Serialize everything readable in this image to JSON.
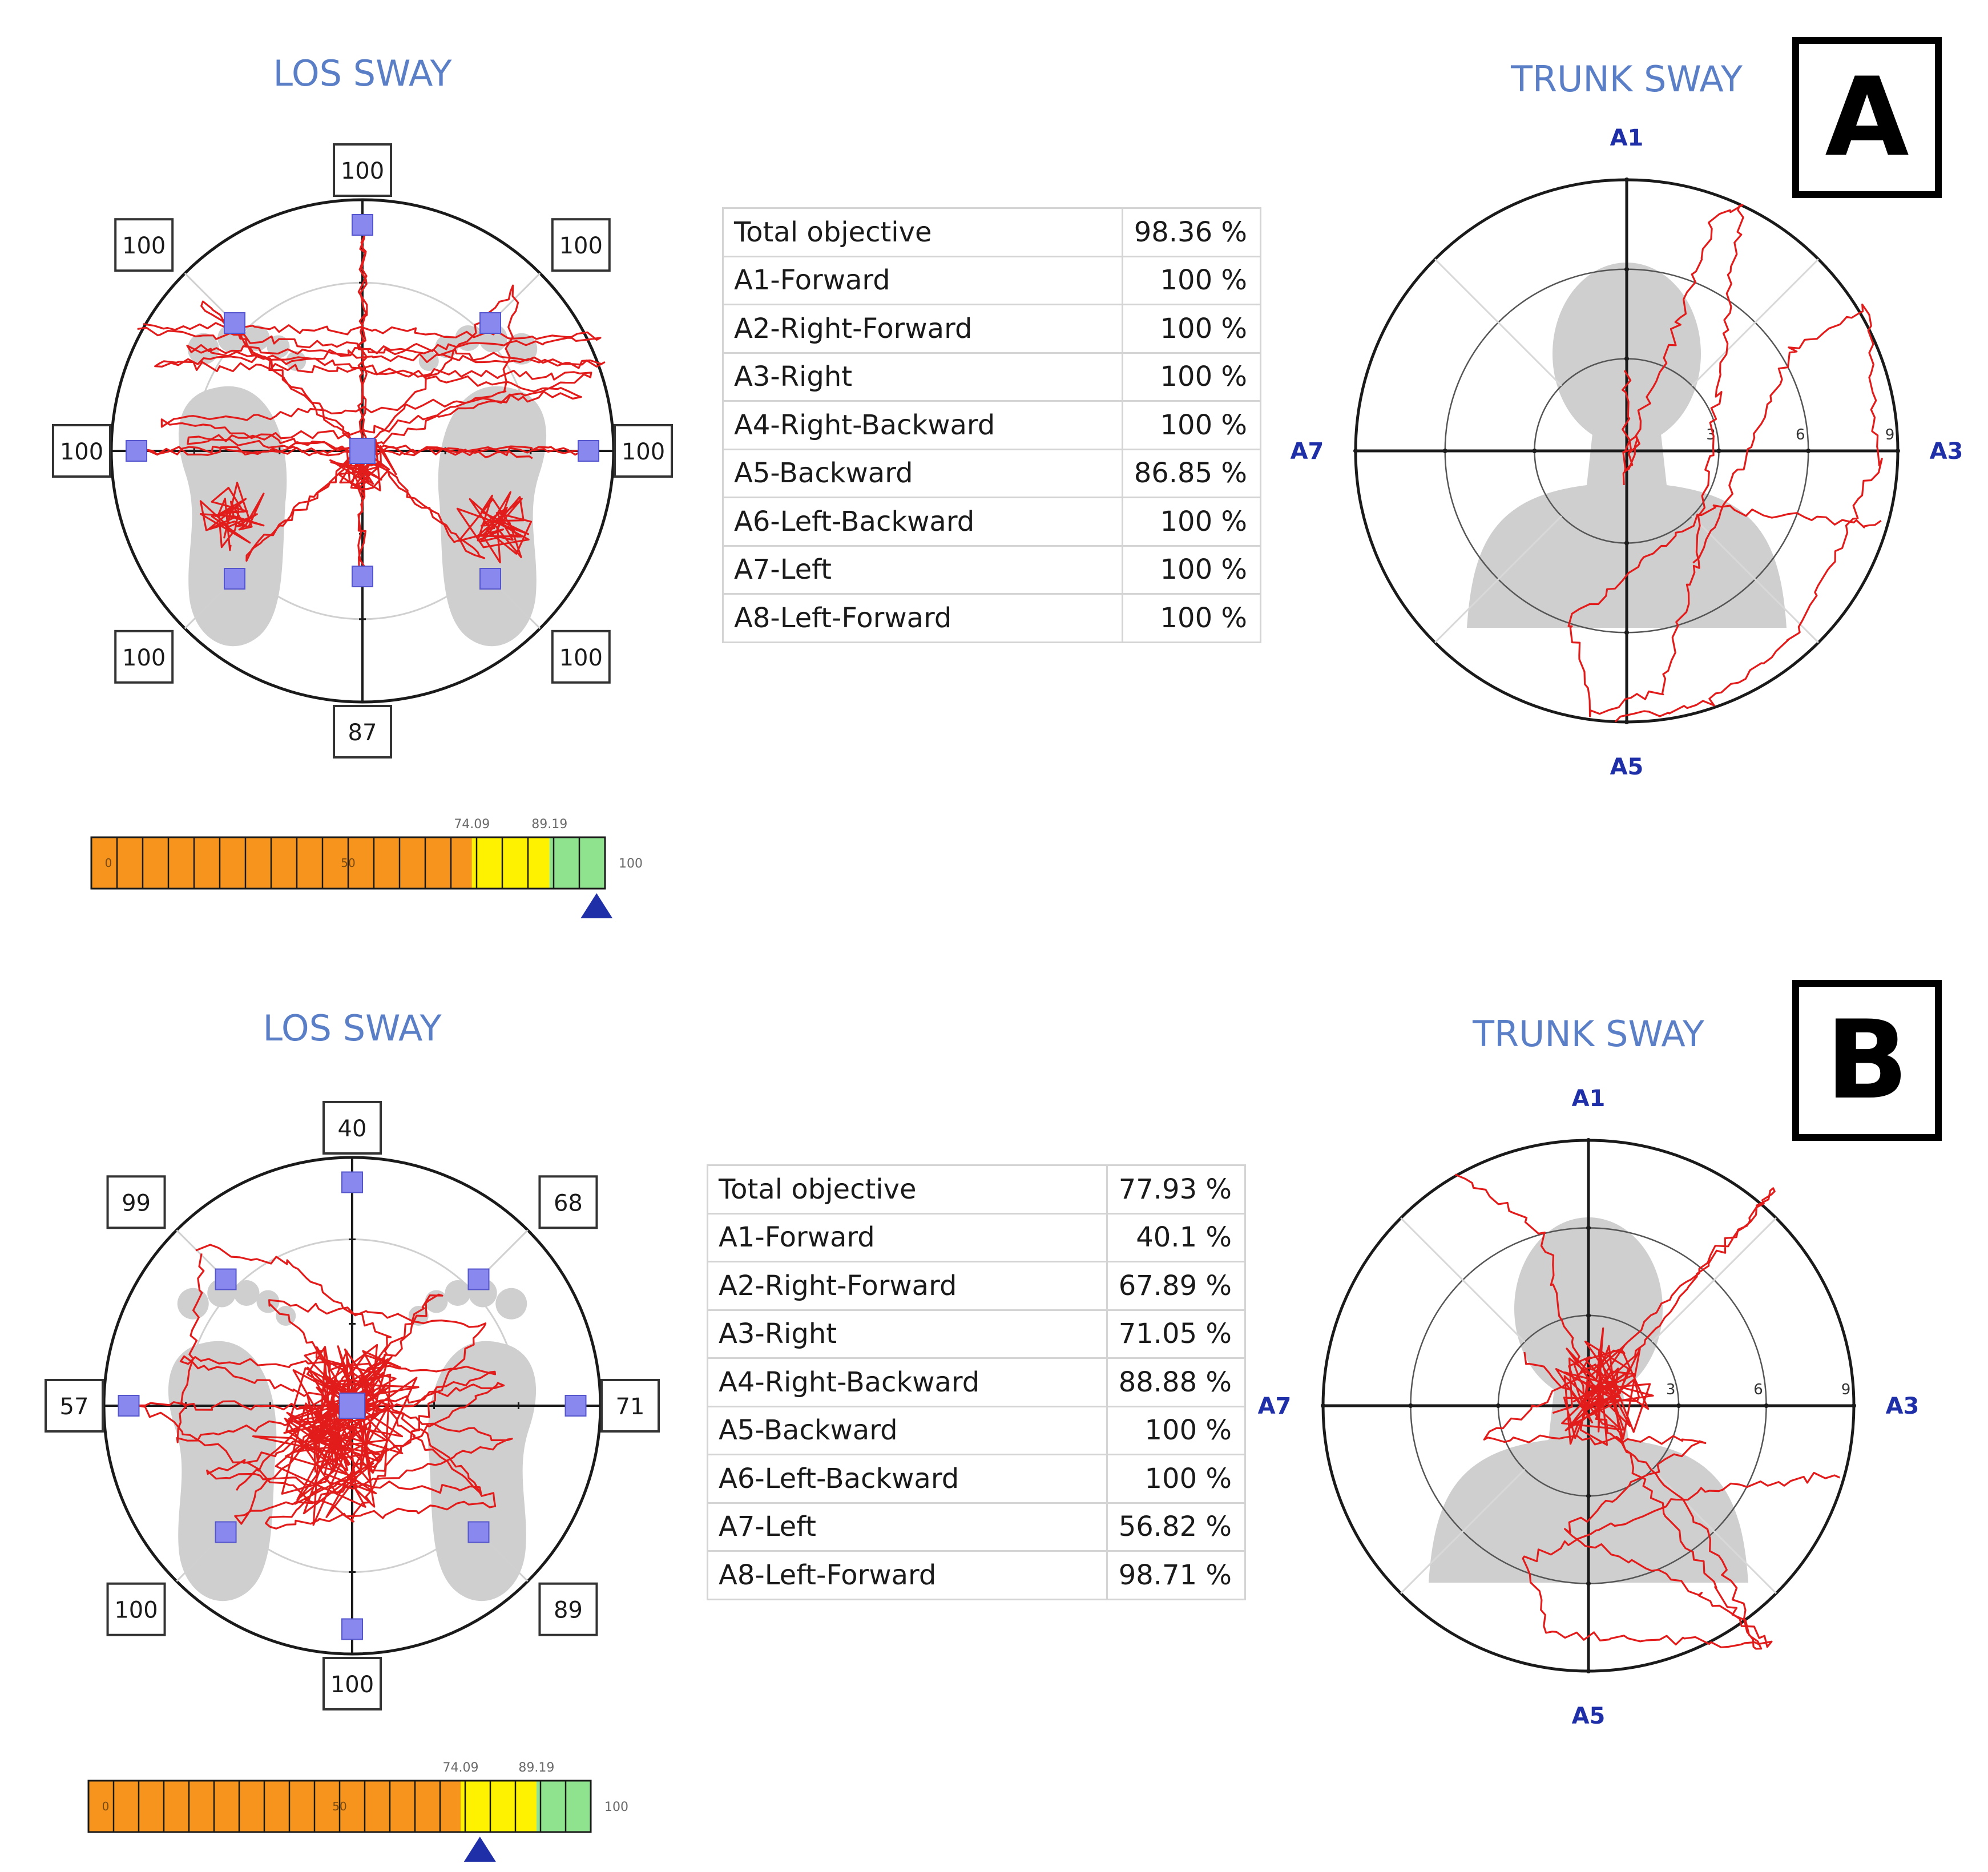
{
  "colors": {
    "title": "#5b7fc7",
    "axis_label": "#1f2fa8",
    "trace": "#e21b1b",
    "marker": "#8888ee",
    "silhouette": "#cfcfcf",
    "bar_orange": "#f7941d",
    "bar_yellow": "#fff200",
    "bar_green": "#8fe38f",
    "pointer": "#1f2fa8"
  },
  "panels": [
    {
      "label": "A",
      "los": {
        "title": "LOS SWAY",
        "directions": [
          {
            "id": "A1",
            "value": "100"
          },
          {
            "id": "A2",
            "value": "100"
          },
          {
            "id": "A3",
            "value": "100"
          },
          {
            "id": "A4",
            "value": "100"
          },
          {
            "id": "A5",
            "value": "87"
          },
          {
            "id": "A6",
            "value": "100"
          },
          {
            "id": "A7",
            "value": "100"
          },
          {
            "id": "A8",
            "value": "100"
          }
        ]
      },
      "scale": {
        "min_label": "0",
        "mid_label": "50",
        "t1_label": "74.09",
        "t2_label": "89.19",
        "max_label": "100",
        "thresholds": [
          74.09,
          89.19
        ],
        "indicator": 98.36
      },
      "table": [
        {
          "label": "Total objective",
          "value": "98.36 %"
        },
        {
          "label": "A1-Forward",
          "value": "100 %"
        },
        {
          "label": "A2-Right-Forward",
          "value": "100 %"
        },
        {
          "label": "A3-Right",
          "value": "100 %"
        },
        {
          "label": "A4-Right-Backward",
          "value": "100 %"
        },
        {
          "label": "A5-Backward",
          "value": "86.85 %"
        },
        {
          "label": "A6-Left-Backward",
          "value": "100 %"
        },
        {
          "label": "A7-Left",
          "value": "100 %"
        },
        {
          "label": "A8-Left-Forward",
          "value": "100 %"
        }
      ],
      "trunk": {
        "title": "TRUNK SWAY",
        "top": "A1",
        "right": "A3",
        "bottom": "A5",
        "left": "A7",
        "ticks": [
          "3",
          "6",
          "9"
        ]
      }
    },
    {
      "label": "B",
      "los": {
        "title": "LOS SWAY",
        "directions": [
          {
            "id": "A1",
            "value": "40"
          },
          {
            "id": "A2",
            "value": "68"
          },
          {
            "id": "A3",
            "value": "71"
          },
          {
            "id": "A4",
            "value": "89"
          },
          {
            "id": "A5",
            "value": "100"
          },
          {
            "id": "A6",
            "value": "100"
          },
          {
            "id": "A7",
            "value": "57"
          },
          {
            "id": "A8",
            "value": "99"
          }
        ]
      },
      "scale": {
        "min_label": "0",
        "mid_label": "50",
        "t1_label": "74.09",
        "t2_label": "89.19",
        "max_label": "100",
        "thresholds": [
          74.09,
          89.19
        ],
        "indicator": 77.93
      },
      "table": [
        {
          "label": "Total objective",
          "value": "77.93 %"
        },
        {
          "label": "A1-Forward",
          "value": "40.1 %"
        },
        {
          "label": "A2-Right-Forward",
          "value": "67.89 %"
        },
        {
          "label": "A3-Right",
          "value": "71.05 %"
        },
        {
          "label": "A4-Right-Backward",
          "value": "88.88 %"
        },
        {
          "label": "A5-Backward",
          "value": "100 %"
        },
        {
          "label": "A6-Left-Backward",
          "value": "100 %"
        },
        {
          "label": "A7-Left",
          "value": "56.82 %"
        },
        {
          "label": "A8-Left-Forward",
          "value": "98.71 %"
        }
      ],
      "trunk": {
        "title": "TRUNK SWAY",
        "top": "A1",
        "right": "A3",
        "bottom": "A5",
        "left": "A7",
        "ticks": [
          "3",
          "6",
          "9"
        ]
      }
    }
  ],
  "chart_data": [
    {
      "type": "table",
      "panel": "A",
      "title": "LOS SWAY / TRUNK SWAY",
      "categories": [
        "Total objective",
        "A1-Forward",
        "A2-Right-Forward",
        "A3-Right",
        "A4-Right-Backward",
        "A5-Backward",
        "A6-Left-Backward",
        "A7-Left",
        "A8-Left-Forward"
      ],
      "values": [
        98.36,
        100,
        100,
        100,
        100,
        86.85,
        100,
        100,
        100
      ],
      "los_direction_scores": {
        "A1": 100,
        "A2": 100,
        "A3": 100,
        "A4": 100,
        "A5": 87,
        "A6": 100,
        "A7": 100,
        "A8": 100
      },
      "scale_range": [
        0,
        100
      ],
      "scale_thresholds": [
        74.09,
        89.19
      ],
      "scale_indicator": 98.36
    },
    {
      "type": "table",
      "panel": "B",
      "title": "LOS SWAY / TRUNK SWAY",
      "categories": [
        "Total objective",
        "A1-Forward",
        "A2-Right-Forward",
        "A3-Right",
        "A4-Right-Backward",
        "A5-Backward",
        "A6-Left-Backward",
        "A7-Left",
        "A8-Left-Forward"
      ],
      "values": [
        77.93,
        40.1,
        67.89,
        71.05,
        88.88,
        100,
        100,
        56.82,
        98.71
      ],
      "los_direction_scores": {
        "A1": 40,
        "A2": 68,
        "A3": 71,
        "A4": 89,
        "A5": 100,
        "A6": 100,
        "A7": 57,
        "A8": 99
      },
      "scale_range": [
        0,
        100
      ],
      "scale_thresholds": [
        74.09,
        89.19
      ],
      "scale_indicator": 77.93
    }
  ]
}
